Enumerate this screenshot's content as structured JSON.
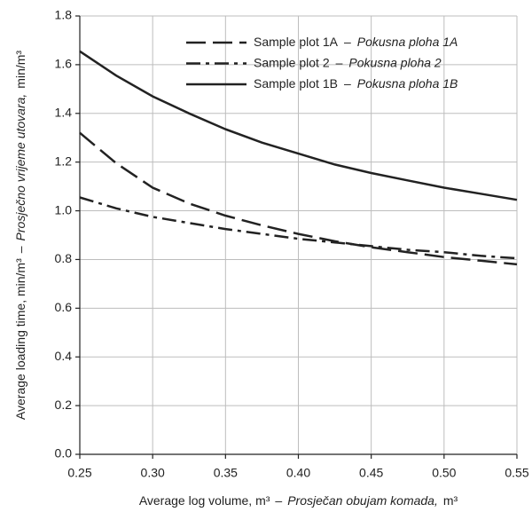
{
  "chart_data": {
    "type": "line",
    "xlabel": [
      "Average log volume, m³",
      "–",
      "Prosječan obujam komada,",
      "m³"
    ],
    "ylabel": [
      "Average loading time, min/m³",
      "–",
      "Prosječno vrijeme utovara,",
      "min/m³"
    ],
    "legend_separator": "–",
    "legend": "upper right",
    "x": [
      0.25,
      0.275,
      0.3,
      0.325,
      0.35,
      0.375,
      0.4,
      0.425,
      0.45,
      0.475,
      0.5,
      0.525,
      0.55
    ],
    "series": [
      {
        "name": "Sample plot 1A",
        "name_hr": "Pokusna ploha 1A",
        "color": "#222222",
        "style": "dashed",
        "values": [
          1.32,
          1.195,
          1.095,
          1.03,
          0.98,
          0.94,
          0.905,
          0.875,
          0.85,
          0.83,
          0.81,
          0.795,
          0.78
        ]
      },
      {
        "name": "Sample plot 2",
        "name_hr": "Pokusna ploha 2",
        "color": "#222222",
        "style": "dashdot",
        "values": [
          1.055,
          1.01,
          0.975,
          0.95,
          0.925,
          0.905,
          0.885,
          0.87,
          0.855,
          0.84,
          0.83,
          0.815,
          0.805
        ]
      },
      {
        "name": "Sample plot 1B",
        "name_hr": "Pokusna ploha 1B",
        "color": "#222222",
        "style": "solid",
        "values": [
          1.655,
          1.555,
          1.47,
          1.4,
          1.335,
          1.28,
          1.235,
          1.19,
          1.155,
          1.125,
          1.095,
          1.07,
          1.045
        ]
      }
    ],
    "xlim": [
      0.25,
      0.55
    ],
    "xticks": [
      0.25,
      {
        "value": 0.3,
        "label": "0.30"
      },
      0.35,
      {
        "value": 0.4,
        "label": "0.40"
      },
      0.45,
      {
        "value": 0.5,
        "label": "0.50"
      },
      0.55
    ],
    "ylim": [
      0,
      1.8
    ],
    "yticks": [
      {
        "value": 0,
        "label": "0.0"
      },
      0.2,
      0.4,
      0.6,
      0.8,
      {
        "value": 1,
        "label": "1.0"
      },
      1.2,
      1.4,
      1.6,
      1.8
    ],
    "grid": true
  }
}
